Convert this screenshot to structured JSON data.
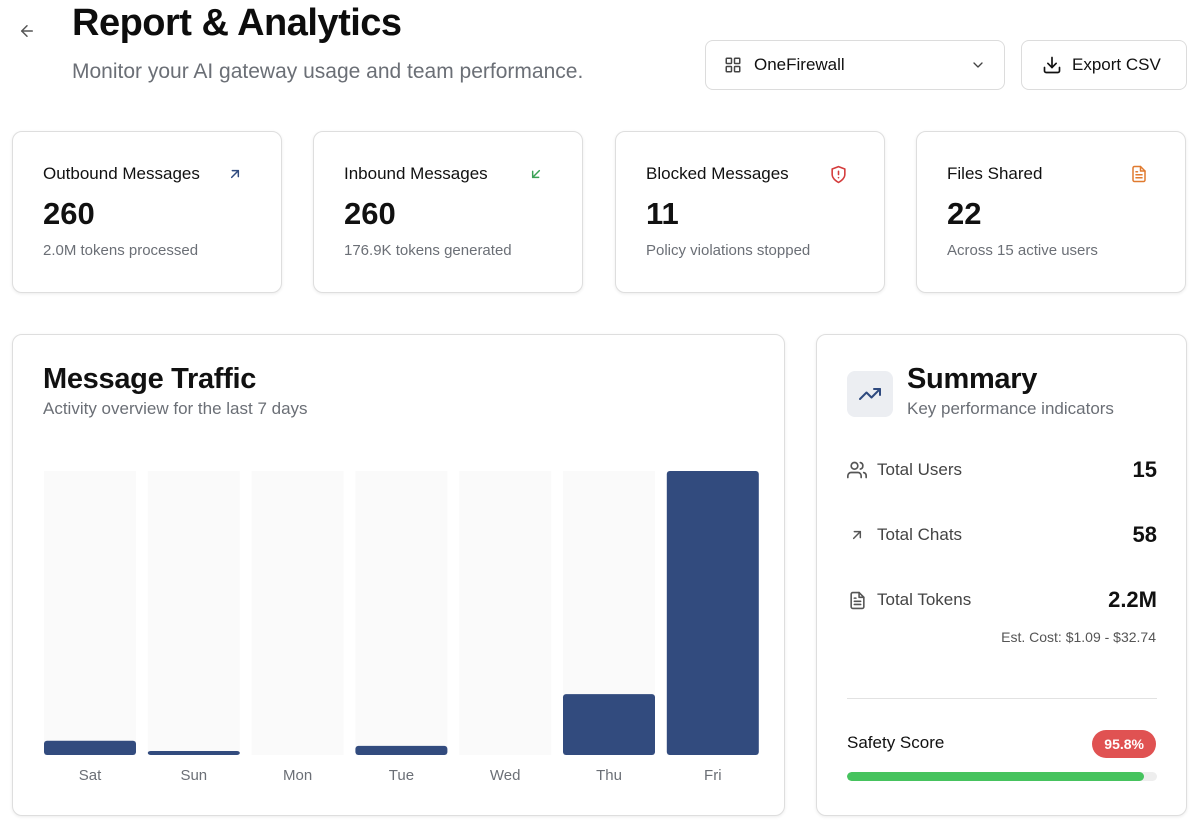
{
  "header": {
    "title": "Report & Analytics",
    "subtitle": "Monitor your AI gateway usage and team performance.",
    "workspace_select": {
      "selected": "OneFirewall",
      "icon": "grid-icon"
    },
    "export_label": "Export CSV"
  },
  "stats": [
    {
      "title": "Outbound Messages",
      "value": "260",
      "sub": "2.0M tokens processed",
      "icon": "arrow-up-right-icon",
      "color": "#2f4a7f"
    },
    {
      "title": "Inbound Messages",
      "value": "260",
      "sub": "176.9K tokens generated",
      "icon": "arrow-down-left-icon",
      "color": "#3aa155"
    },
    {
      "title": "Blocked Messages",
      "value": "11",
      "sub": "Policy violations stopped",
      "icon": "shield-alert-icon",
      "color": "#d43c3c"
    },
    {
      "title": "Files Shared",
      "value": "22",
      "sub": "Across 15 active users",
      "icon": "file-text-icon",
      "color": "#e07a2f"
    }
  ],
  "traffic": {
    "title": "Message Traffic",
    "subtitle": "Activity overview for the last 7 days"
  },
  "chart_data": {
    "type": "bar",
    "categories": [
      "Sat",
      "Sun",
      "Mon",
      "Tue",
      "Wed",
      "Thu",
      "Fri"
    ],
    "values": [
      14,
      4,
      0,
      9,
      0,
      60,
      280
    ],
    "ylim": [
      0,
      280
    ],
    "grid": false,
    "bar_color": "#324b7e",
    "track_color": "#fafafa"
  },
  "summary": {
    "title": "Summary",
    "subtitle": "Key performance indicators",
    "metrics": [
      {
        "label": "Total Users",
        "value": "15",
        "icon": "users-icon"
      },
      {
        "label": "Total Chats",
        "value": "58",
        "icon": "arrow-up-right-icon"
      },
      {
        "label": "Total Tokens",
        "value": "2.2M",
        "icon": "file-text-icon"
      }
    ],
    "est_cost": "Est. Cost: $1.09 - $32.74",
    "safety_label": "Safety Score",
    "safety_score": "95.8%",
    "safety_fraction": 0.958
  }
}
